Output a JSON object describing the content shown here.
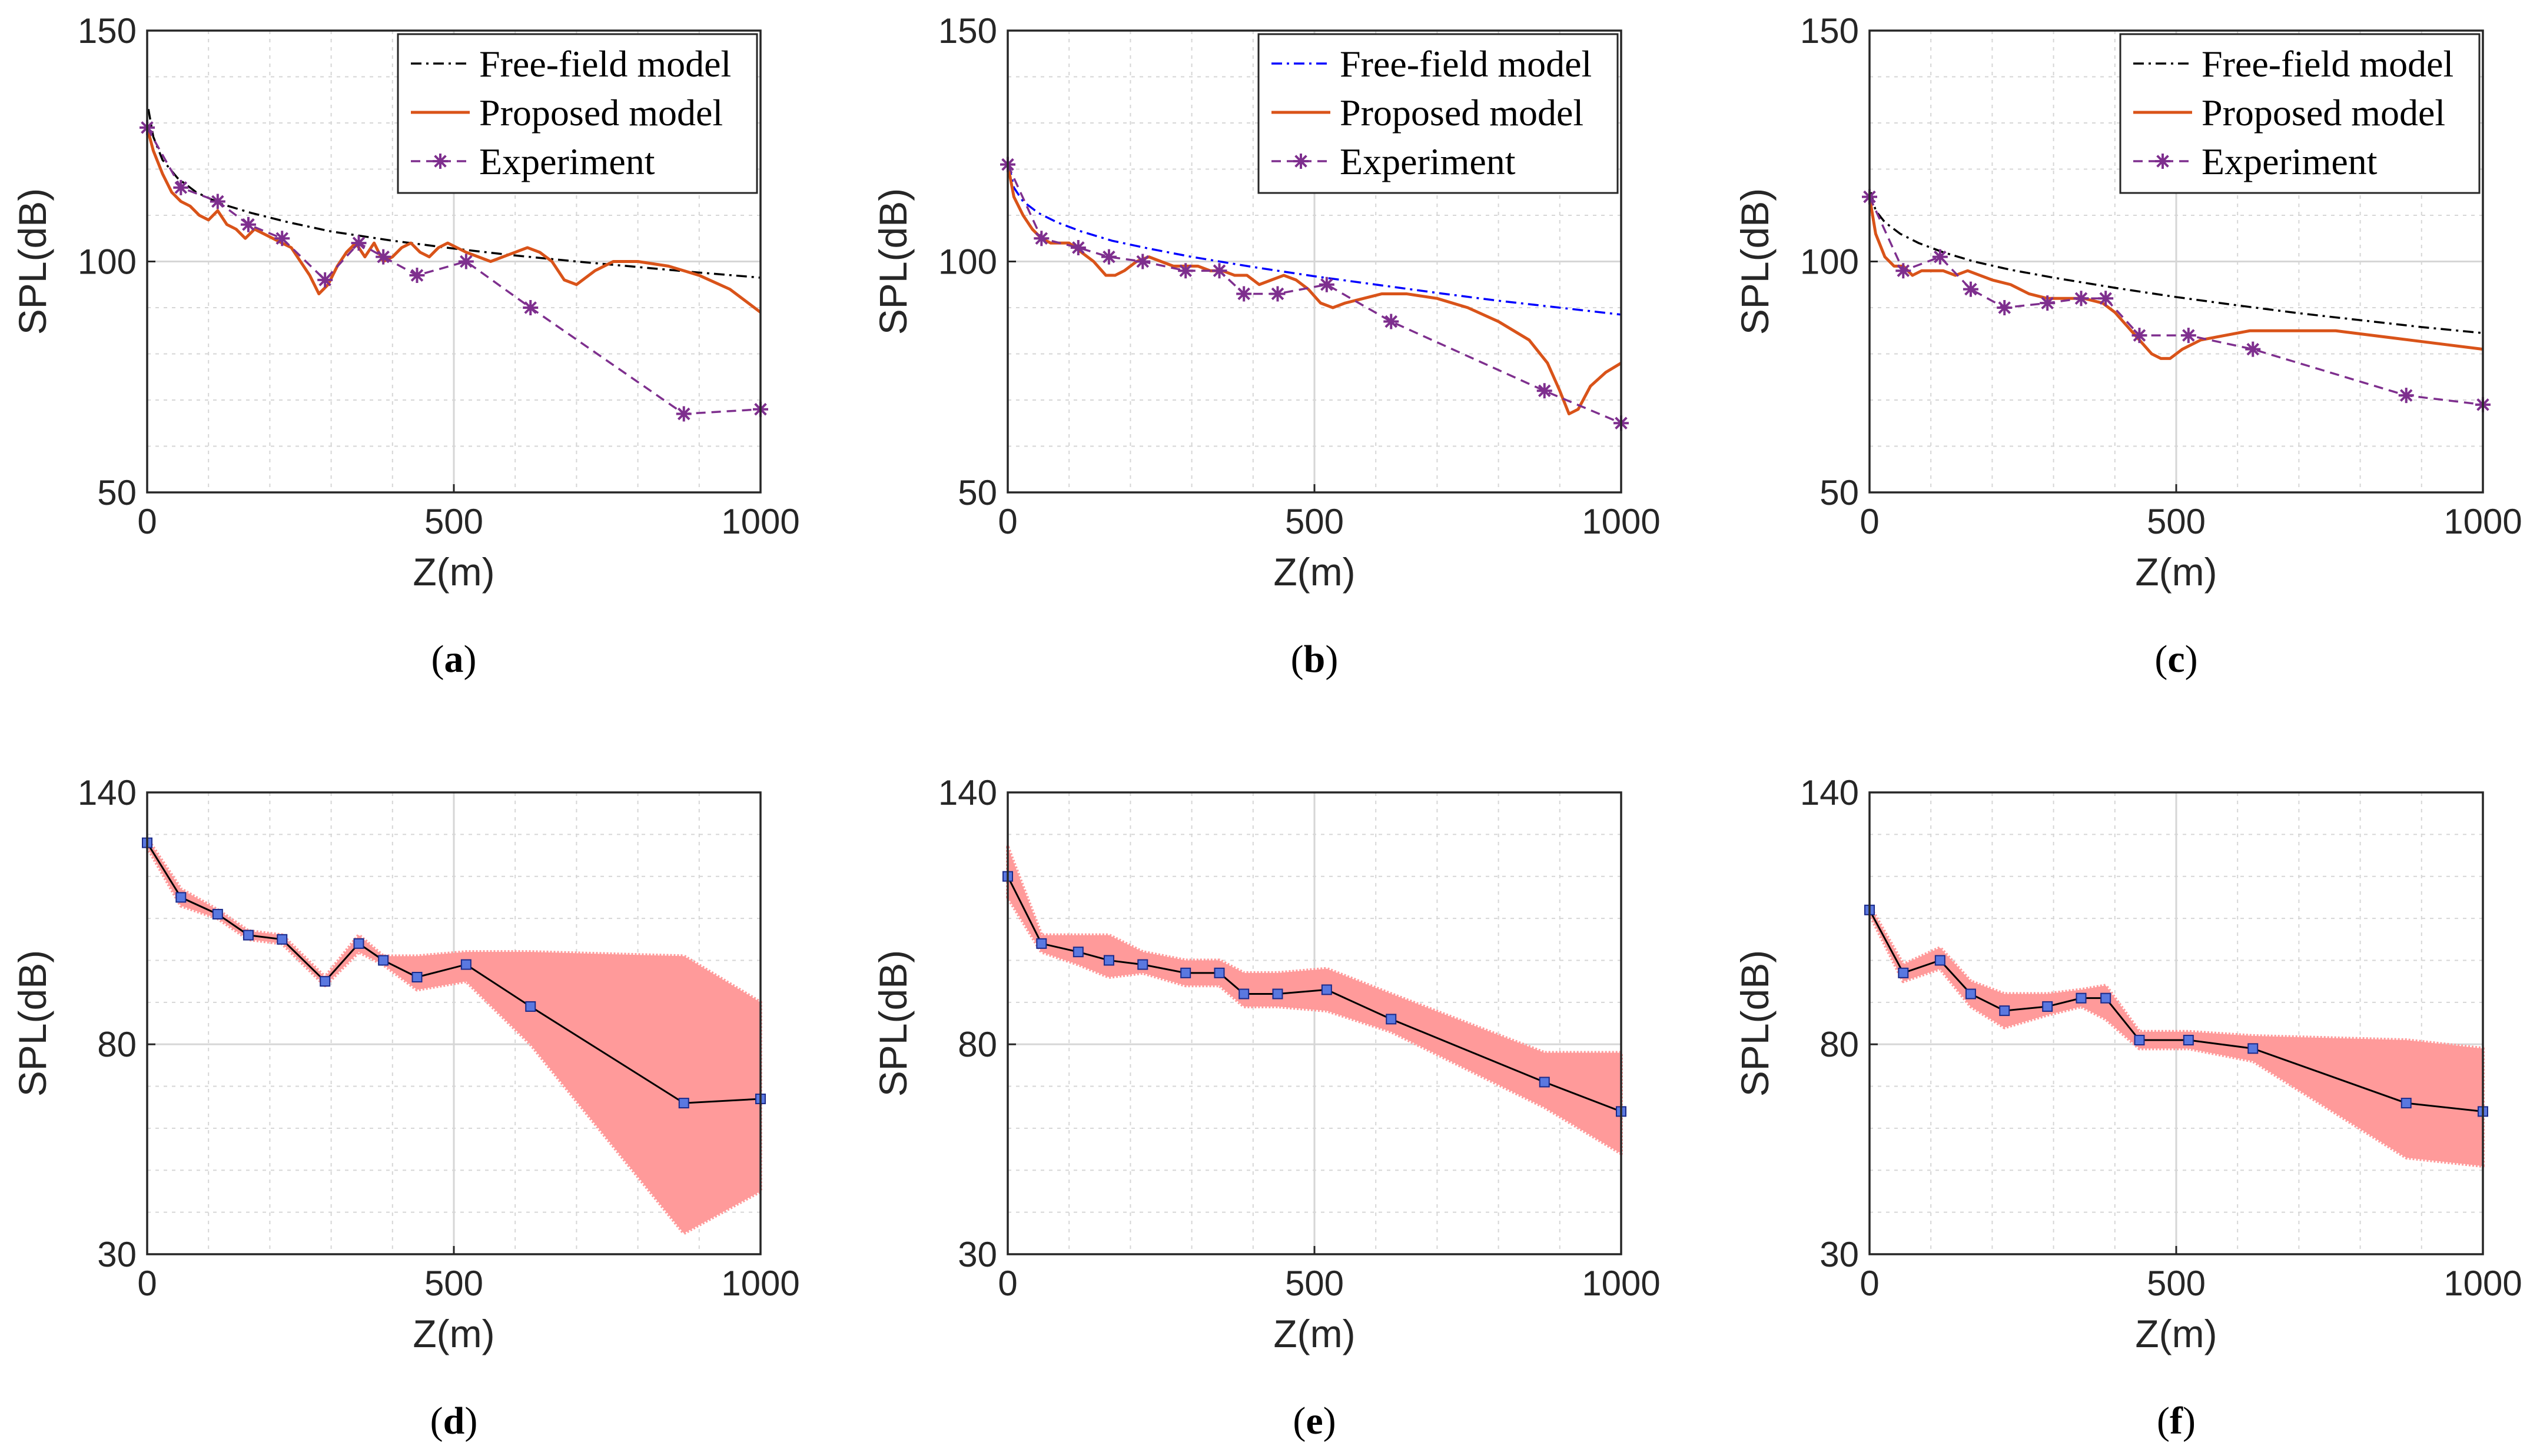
{
  "colors": {
    "free_field_black": "#000000",
    "free_field_blue": "#0000ff",
    "proposed": "#d95319",
    "experiment": "#7e2f8e",
    "band": "#ff9a9a",
    "band_line": "#000000",
    "band_marker_fill": "#5a78e0",
    "band_marker_edge": "#1a2a8a",
    "grid": "#d6d6d6",
    "axes": "#262626"
  },
  "chart_data": [
    {
      "id": "a",
      "caption": "a",
      "type": "line",
      "title": "",
      "xlabel": "Z(m)",
      "ylabel": "SPL(dB)",
      "xlim": [
        0,
        1000
      ],
      "ylim": [
        50,
        150
      ],
      "xticks": [
        "0",
        "500",
        "1000"
      ],
      "yticks": [
        "50",
        "100",
        "150"
      ],
      "xtick_values": [
        0,
        500,
        1000
      ],
      "ytick_values": [
        50,
        100,
        150
      ],
      "grid": true,
      "legend_position": "top-right",
      "free_field_color": "#000000",
      "series": [
        {
          "name": "Free-field model",
          "style": "dashdot",
          "x": [
            2,
            10,
            25,
            50,
            80,
            120,
            170,
            230,
            300,
            400,
            500,
            600,
            700,
            800,
            900,
            1000
          ],
          "y": [
            133,
            127,
            122,
            118,
            115,
            112.5,
            110.5,
            108.5,
            106.5,
            104.5,
            102.8,
            101.3,
            100,
            98.8,
            97.6,
            96.5
          ]
        },
        {
          "name": "Proposed model",
          "style": "solid",
          "x": [
            0,
            10,
            25,
            40,
            55,
            70,
            85,
            100,
            115,
            130,
            145,
            160,
            175,
            190,
            205,
            220,
            235,
            250,
            265,
            280,
            295,
            310,
            325,
            340,
            355,
            370,
            385,
            400,
            415,
            430,
            445,
            460,
            475,
            490,
            505,
            520,
            540,
            560,
            580,
            600,
            620,
            640,
            660,
            680,
            700,
            730,
            760,
            800,
            850,
            900,
            950,
            1000
          ],
          "y": [
            129,
            124,
            119,
            115,
            113,
            112,
            110,
            109,
            111,
            108,
            107,
            105,
            107,
            106,
            105,
            104,
            103,
            100,
            97,
            93,
            95,
            99,
            102,
            104,
            101,
            104,
            100,
            101,
            103,
            104,
            102,
            101,
            103,
            104,
            103,
            102,
            101,
            100,
            101,
            102,
            103,
            102,
            100,
            96,
            95,
            98,
            100,
            100,
            99,
            97,
            94,
            89
          ]
        },
        {
          "name": "Experiment",
          "style": "dashed-star",
          "x": [
            0,
            55,
            115,
            165,
            220,
            290,
            345,
            385,
            440,
            520,
            625,
            875,
            1000
          ],
          "y": [
            129,
            116,
            113,
            108,
            105,
            96,
            104,
            101,
            97,
            100,
            90,
            67,
            68
          ]
        }
      ]
    },
    {
      "id": "b",
      "caption": "b",
      "type": "line",
      "title": "",
      "xlabel": "Z(m)",
      "ylabel": "SPL(dB)",
      "xlim": [
        0,
        1000
      ],
      "ylim": [
        50,
        150
      ],
      "xticks": [
        "0",
        "500",
        "1000"
      ],
      "yticks": [
        "50",
        "100",
        "150"
      ],
      "xtick_values": [
        0,
        500,
        1000
      ],
      "ytick_values": [
        50,
        100,
        150
      ],
      "grid": true,
      "legend_position": "top-right",
      "free_field_color": "#0000ff",
      "series": [
        {
          "name": "Free-field model",
          "style": "dashdot",
          "x": [
            2,
            10,
            25,
            50,
            80,
            120,
            170,
            230,
            300,
            400,
            500,
            600,
            700,
            800,
            900,
            1000
          ],
          "y": [
            121,
            116,
            113,
            110.5,
            108.5,
            106.5,
            104.5,
            102.8,
            101,
            98.8,
            96.8,
            95,
            93.2,
            91.5,
            90,
            88.5
          ]
        },
        {
          "name": "Proposed model",
          "style": "solid",
          "x": [
            0,
            10,
            25,
            40,
            55,
            70,
            85,
            100,
            120,
            140,
            160,
            175,
            190,
            210,
            230,
            250,
            270,
            290,
            310,
            330,
            350,
            370,
            390,
            410,
            430,
            450,
            470,
            490,
            510,
            530,
            550,
            580,
            610,
            650,
            700,
            750,
            800,
            850,
            880,
            900,
            915,
            930,
            950,
            975,
            1000
          ],
          "y": [
            121,
            114,
            110,
            107,
            105,
            104,
            104,
            104,
            102,
            100,
            97,
            97,
            98,
            100,
            101,
            100,
            99,
            99,
            99,
            98,
            98,
            97,
            97,
            95,
            96,
            97,
            96,
            94,
            91,
            90,
            91,
            92,
            93,
            93,
            92,
            90,
            87,
            83,
            78,
            72,
            67,
            68,
            73,
            76,
            78
          ]
        },
        {
          "name": "Experiment",
          "style": "dashed-star",
          "x": [
            0,
            55,
            115,
            165,
            220,
            290,
            345,
            385,
            440,
            520,
            625,
            875,
            1000
          ],
          "y": [
            121,
            105,
            103,
            101,
            100,
            98,
            98,
            93,
            93,
            95,
            87,
            72,
            65
          ]
        }
      ]
    },
    {
      "id": "c",
      "caption": "c",
      "type": "line",
      "title": "",
      "xlabel": "Z(m)",
      "ylabel": "SPL(dB)",
      "xlim": [
        0,
        1000
      ],
      "ylim": [
        50,
        150
      ],
      "xticks": [
        "0",
        "500",
        "1000"
      ],
      "yticks": [
        "50",
        "100",
        "150"
      ],
      "xtick_values": [
        0,
        500,
        1000
      ],
      "ytick_values": [
        50,
        100,
        150
      ],
      "grid": true,
      "legend_position": "top-right",
      "free_field_color": "#000000",
      "series": [
        {
          "name": "Free-field model",
          "style": "dashdot",
          "x": [
            2,
            10,
            25,
            50,
            80,
            120,
            170,
            230,
            300,
            400,
            500,
            600,
            700,
            800,
            900,
            1000
          ],
          "y": [
            115,
            111,
            108.5,
            106,
            104,
            102,
            100,
            98.2,
            96.5,
            94.3,
            92.3,
            90.5,
            88.8,
            87.3,
            85.8,
            84.5
          ]
        },
        {
          "name": "Proposed model",
          "style": "solid",
          "x": [
            0,
            10,
            25,
            40,
            55,
            70,
            85,
            100,
            120,
            140,
            160,
            180,
            200,
            230,
            260,
            290,
            320,
            350,
            380,
            400,
            420,
            440,
            460,
            475,
            490,
            510,
            540,
            580,
            620,
            660,
            700,
            760,
            820,
            880,
            940,
            1000
          ],
          "y": [
            114,
            106,
            101,
            99,
            99,
            97,
            98,
            98,
            98,
            97,
            98,
            97,
            96,
            95,
            93,
            92,
            92,
            92,
            91,
            89,
            86,
            83,
            80,
            79,
            79,
            81,
            83,
            84,
            85,
            85,
            85,
            85,
            84,
            83,
            82,
            81
          ]
        },
        {
          "name": "Experiment",
          "style": "dashed-star",
          "x": [
            0,
            55,
            115,
            165,
            220,
            290,
            345,
            385,
            440,
            520,
            625,
            875,
            1000
          ],
          "y": [
            114,
            98,
            101,
            94,
            90,
            91,
            92,
            92,
            84,
            84,
            81,
            71,
            69
          ]
        }
      ]
    },
    {
      "id": "d",
      "caption": "d",
      "type": "area",
      "title": "",
      "xlabel": "Z(m)",
      "ylabel": "SPL(dB)",
      "xlim": [
        0,
        1000
      ],
      "ylim": [
        30,
        140
      ],
      "xticks": [
        "0",
        "500",
        "1000"
      ],
      "yticks": [
        "30",
        "80",
        "140"
      ],
      "xtick_values": [
        0,
        500,
        1000
      ],
      "ytick_values": [
        30,
        80,
        140
      ],
      "grid": true,
      "x": [
        0,
        55,
        115,
        165,
        220,
        290,
        345,
        385,
        440,
        520,
        625,
        875,
        1000
      ],
      "mean": [
        128,
        115,
        111,
        106,
        105,
        95,
        104,
        100,
        96,
        99,
        89,
        66,
        67
      ],
      "upper": [
        129,
        117,
        112,
        107,
        106,
        96,
        106,
        101,
        101,
        102,
        102,
        101,
        90
      ],
      "lower": [
        127,
        113,
        110,
        105,
        104,
        94,
        102,
        99,
        93,
        95,
        80,
        35,
        45
      ]
    },
    {
      "id": "e",
      "caption": "e",
      "type": "area",
      "title": "",
      "xlabel": "Z(m)",
      "ylabel": "SPL(dB)",
      "xlim": [
        0,
        1000
      ],
      "ylim": [
        30,
        140
      ],
      "xticks": [
        "0",
        "500",
        "1000"
      ],
      "yticks": [
        "30",
        "80",
        "140"
      ],
      "xtick_values": [
        0,
        500,
        1000
      ],
      "ytick_values": [
        30,
        80,
        140
      ],
      "grid": true,
      "x": [
        0,
        55,
        115,
        165,
        220,
        290,
        345,
        385,
        440,
        520,
        625,
        875,
        1000
      ],
      "mean": [
        120,
        104,
        102,
        100,
        99,
        97,
        97,
        92,
        92,
        93,
        86,
        71,
        64
      ],
      "upper": [
        127,
        106,
        106,
        106,
        102,
        100,
        100,
        97,
        97,
        98,
        92,
        78,
        78
      ],
      "lower": [
        115,
        102,
        99,
        96,
        97,
        94,
        94,
        89,
        89,
        88,
        83,
        65,
        54
      ]
    },
    {
      "id": "f",
      "caption": "f",
      "type": "area",
      "title": "",
      "xlabel": "Z(m)",
      "ylabel": "SPL(dB)",
      "xlim": [
        0,
        1000
      ],
      "ylim": [
        30,
        140
      ],
      "xticks": [
        "0",
        "500",
        "1000"
      ],
      "yticks": [
        "30",
        "80",
        "140"
      ],
      "xtick_values": [
        0,
        500,
        1000
      ],
      "ytick_values": [
        30,
        80,
        140
      ],
      "grid": true,
      "x": [
        0,
        55,
        115,
        165,
        220,
        290,
        345,
        385,
        440,
        520,
        625,
        875,
        1000
      ],
      "mean": [
        112,
        97,
        100,
        92,
        88,
        89,
        91,
        91,
        81,
        81,
        79,
        66,
        64
      ],
      "upper": [
        113,
        99,
        103,
        95,
        92,
        92,
        93,
        94,
        83,
        83,
        82,
        81,
        79
      ],
      "lower": [
        111,
        95,
        98,
        89,
        84,
        87,
        89,
        86,
        79,
        79,
        76,
        53,
        51
      ]
    }
  ]
}
